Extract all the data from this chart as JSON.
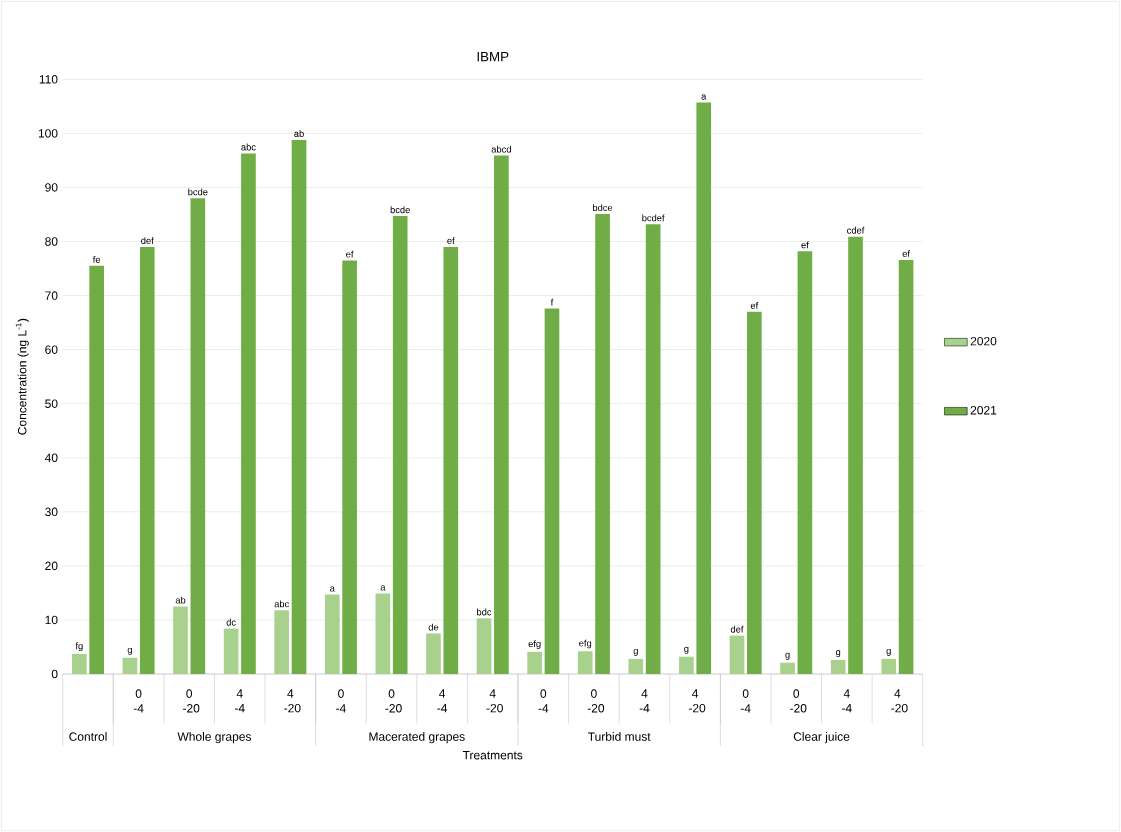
{
  "chart_data": {
    "type": "bar",
    "title": "IBMP",
    "xlabel": "Treatments",
    "ylabel": "Concentration (ng L$^{-1}$)",
    "categories": [
      null,
      "0 -4",
      "0 -20",
      "4 -4",
      "4 -20",
      "0 -4",
      "0 -20",
      "4 -4",
      "4 -20",
      "0 -4",
      "0 -20",
      "4 -4",
      "4 -20",
      "0 -4",
      "0 -20",
      "4 -4",
      "4 -20"
    ],
    "annotations": [
      "Control",
      "Whole grapes",
      "Macerated grapes",
      "Turbid must",
      "Clear juice"
    ],
    "series": [
      {
        "name": "2020",
        "color": "#a9d18e",
        "values": [
          3.7,
          3.0,
          12.5,
          8.4,
          11.8,
          14.7,
          14.9,
          7.5,
          10.3,
          4.1,
          4.2,
          2.8,
          3.2,
          7.1,
          2.1,
          2.6,
          2.8
        ],
        "value_labels": [
          "fg",
          "g",
          "ab",
          "dc",
          "abc",
          "a",
          "a",
          "de",
          "bdc",
          "efg",
          "efg",
          "g",
          "g",
          "def",
          "g",
          "g",
          "g"
        ]
      },
      {
        "name": "2021",
        "color": "#70ad47",
        "values": [
          75.5,
          79,
          88,
          96.3,
          98.8,
          76.5,
          84.7,
          79,
          95.9,
          67.6,
          85.1,
          83.2,
          105.7,
          67,
          78.2,
          80.9,
          76.6
        ],
        "value_labels": [
          "fe",
          "def",
          "bcde",
          "abc",
          "ab",
          "ef",
          "bcde",
          "ef",
          "abcd",
          "f",
          "bdce",
          "bcdef",
          "a",
          "ef",
          "ef",
          "cdef",
          "ef"
        ]
      }
    ],
    "ylim": [
      0,
      110
    ],
    "yticks": [
      0,
      10,
      20,
      30,
      40,
      50,
      60,
      70,
      80,
      90,
      100,
      110
    ],
    "grid": "y",
    "legend": "right"
  }
}
